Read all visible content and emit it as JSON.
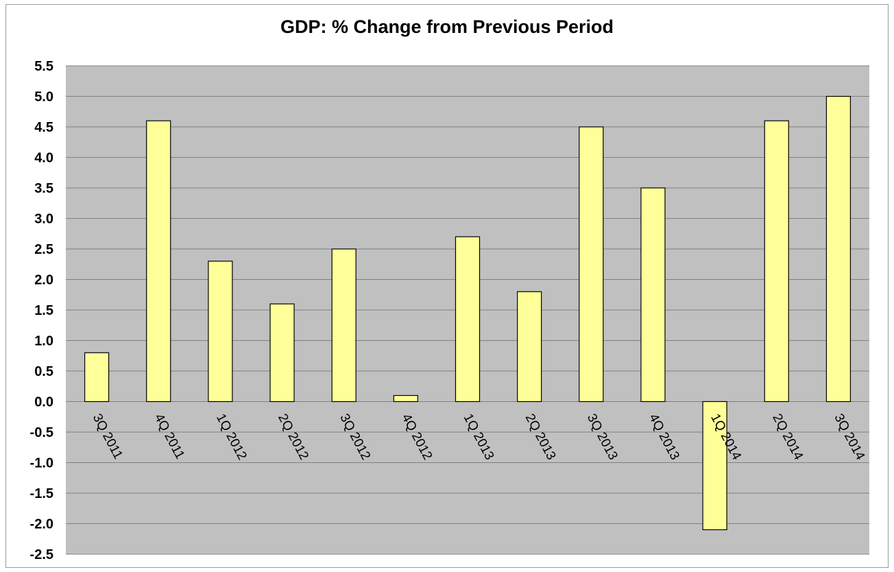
{
  "chart_data": {
    "type": "bar",
    "title": "GDP: % Change from Previous Period",
    "xlabel": "",
    "ylabel": "",
    "categories": [
      "3Q 2011",
      "4Q 2011",
      "1Q 2012",
      "2Q 2012",
      "3Q 2012",
      "4Q 2012",
      "1Q 2013",
      "2Q 2013",
      "3Q 2013",
      "4Q 2013",
      "1Q 2014",
      "2Q 2014",
      "3Q 2014"
    ],
    "values": [
      0.8,
      4.6,
      2.3,
      1.6,
      2.5,
      0.1,
      2.7,
      1.8,
      4.5,
      3.5,
      -2.1,
      4.6,
      5.0
    ],
    "ylim": [
      -2.5,
      5.5
    ],
    "yticks": [
      "5.5",
      "5.0",
      "4.5",
      "4.0",
      "3.5",
      "3.0",
      "2.5",
      "2.0",
      "1.5",
      "1.0",
      "0.5",
      "0.0",
      "-0.5",
      "-1.0",
      "-1.5",
      "-2.0",
      "-2.5"
    ],
    "grid": true,
    "colors": {
      "bar": "#ffff99",
      "plot_background": "#c0c0c0",
      "gridline": "#808080"
    }
  }
}
